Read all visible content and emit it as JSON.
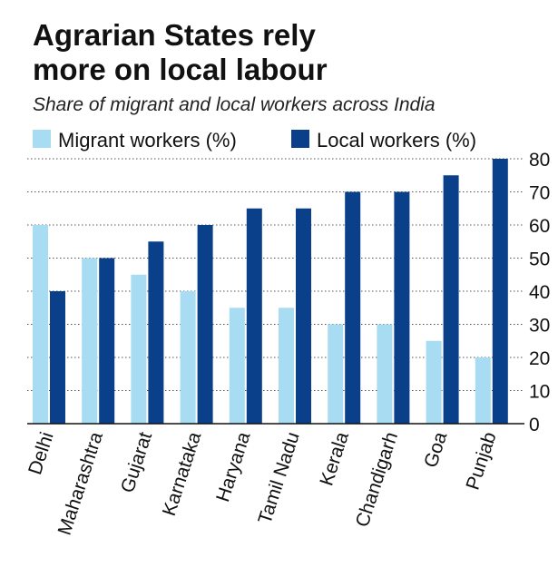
{
  "chart_data": {
    "type": "bar",
    "title_lines": [
      "Agrarian States rely",
      "more on local labour"
    ],
    "subtitle": "Share of migrant and local workers across India",
    "categories": [
      "Delhi",
      "Maharashtra",
      "Gujarat",
      "Karnataka",
      "Haryana",
      "Tamil Nadu",
      "Kerala",
      "Chandigarh",
      "Goa",
      "Punjab"
    ],
    "series": [
      {
        "name": "Migrant workers (%)",
        "color": "#a8dcf2",
        "values": [
          60,
          50,
          45,
          40,
          35,
          35,
          30,
          30,
          25,
          20
        ]
      },
      {
        "name": "Local workers (%)",
        "color": "#0a4089",
        "values": [
          40,
          50,
          55,
          60,
          65,
          65,
          70,
          70,
          75,
          80
        ]
      }
    ],
    "xlabel": "",
    "ylabel": "",
    "ylim": [
      0,
      80
    ],
    "yticks": [
      0,
      10,
      20,
      30,
      40,
      50,
      60,
      70,
      80
    ],
    "y_axis_side": "right",
    "grid": true,
    "legend_position": "top-left"
  }
}
